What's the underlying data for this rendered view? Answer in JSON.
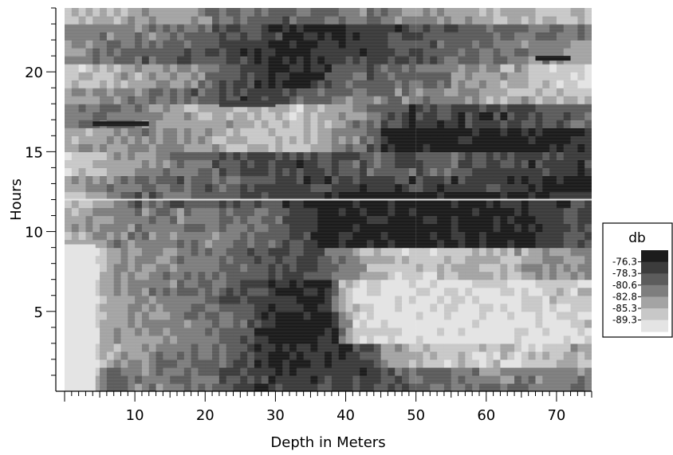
{
  "chart_data": {
    "type": "heatmap",
    "title": "",
    "xlabel": "Depth in Meters",
    "ylabel": "Hours",
    "xlim": [
      0,
      75
    ],
    "ylim": [
      0,
      24
    ],
    "x_ticks": [
      10,
      20,
      30,
      40,
      50,
      60,
      70
    ],
    "y_ticks": [
      5,
      10,
      15,
      20
    ],
    "colorbar": {
      "title": "db",
      "levels": [
        "-76.3",
        "-78.3",
        "-80.6",
        "-82.8",
        "-85.3",
        "-89.3"
      ],
      "colors": [
        "#1c1c1c",
        "#3c3c3c",
        "#5c5c5c",
        "#7e7e7e",
        "#a4a4a4",
        "#c8c8c8",
        "#e4e4e4"
      ]
    },
    "bands": [
      {
        "y0": 0.0,
        "y1": 1.5,
        "stops": [
          [
            0,
            5
          ],
          [
            4,
            5
          ],
          [
            6,
            2
          ],
          [
            12,
            3
          ],
          [
            22,
            2
          ],
          [
            28,
            1
          ],
          [
            42,
            1
          ],
          [
            48,
            2
          ],
          [
            60,
            3
          ],
          [
            75,
            3
          ]
        ]
      },
      {
        "y0": 1.5,
        "y1": 3.0,
        "stops": [
          [
            0,
            6
          ],
          [
            4,
            6
          ],
          [
            6,
            4
          ],
          [
            14,
            3
          ],
          [
            24,
            2
          ],
          [
            30,
            0
          ],
          [
            42,
            1
          ],
          [
            46,
            4
          ],
          [
            55,
            5
          ],
          [
            65,
            5
          ],
          [
            75,
            4
          ]
        ]
      },
      {
        "y0": 3.0,
        "y1": 5.0,
        "stops": [
          [
            0,
            6
          ],
          [
            4,
            6
          ],
          [
            6,
            4
          ],
          [
            16,
            3
          ],
          [
            26,
            2
          ],
          [
            29,
            0
          ],
          [
            38,
            0
          ],
          [
            41,
            5
          ],
          [
            48,
            6
          ],
          [
            70,
            6
          ],
          [
            75,
            5
          ]
        ]
      },
      {
        "y0": 5.0,
        "y1": 7.0,
        "stops": [
          [
            0,
            6
          ],
          [
            4,
            6
          ],
          [
            6,
            4
          ],
          [
            14,
            3
          ],
          [
            24,
            2
          ],
          [
            29,
            1
          ],
          [
            34,
            0
          ],
          [
            37,
            0
          ],
          [
            40,
            5
          ],
          [
            50,
            6
          ],
          [
            70,
            5
          ],
          [
            75,
            5
          ]
        ]
      },
      {
        "y0": 7.0,
        "y1": 9.0,
        "stops": [
          [
            0,
            6
          ],
          [
            4,
            6
          ],
          [
            6,
            4
          ],
          [
            16,
            3
          ],
          [
            26,
            2
          ],
          [
            34,
            1
          ],
          [
            40,
            3
          ],
          [
            45,
            5
          ],
          [
            55,
            5
          ],
          [
            65,
            4
          ],
          [
            75,
            3
          ]
        ]
      },
      {
        "y0": 9.0,
        "y1": 11.5,
        "stops": [
          [
            0,
            4
          ],
          [
            4,
            4
          ],
          [
            8,
            3
          ],
          [
            20,
            3
          ],
          [
            30,
            2
          ],
          [
            34,
            1
          ],
          [
            37,
            0
          ],
          [
            65,
            0
          ],
          [
            68,
            1
          ],
          [
            75,
            2
          ]
        ]
      },
      {
        "y0": 11.5,
        "y1": 12.3,
        "stops": [
          [
            0,
            5
          ],
          [
            6,
            4
          ],
          [
            10,
            2
          ],
          [
            20,
            2
          ],
          [
            34,
            1
          ],
          [
            36,
            0
          ],
          [
            60,
            0
          ],
          [
            70,
            1
          ],
          [
            75,
            1
          ]
        ]
      },
      {
        "y0": 12.3,
        "y1": 13.5,
        "stops": [
          [
            0,
            4
          ],
          [
            8,
            3
          ],
          [
            14,
            2
          ],
          [
            25,
            2
          ],
          [
            35,
            1
          ],
          [
            45,
            1
          ],
          [
            60,
            1
          ],
          [
            75,
            0
          ]
        ]
      },
      {
        "y0": 13.5,
        "y1": 15.0,
        "stops": [
          [
            0,
            5
          ],
          [
            8,
            4
          ],
          [
            14,
            3
          ],
          [
            22,
            2
          ],
          [
            30,
            1
          ],
          [
            45,
            2
          ],
          [
            55,
            2
          ],
          [
            65,
            1
          ],
          [
            75,
            1
          ]
        ]
      },
      {
        "y0": 15.0,
        "y1": 16.5,
        "stops": [
          [
            0,
            4
          ],
          [
            6,
            4
          ],
          [
            12,
            3
          ],
          [
            22,
            4
          ],
          [
            32,
            5
          ],
          [
            38,
            4
          ],
          [
            44,
            2
          ],
          [
            46,
            0
          ],
          [
            70,
            0
          ],
          [
            75,
            1
          ]
        ]
      },
      {
        "y0": 16.5,
        "y1": 17.8,
        "stops": [
          [
            0,
            3
          ],
          [
            8,
            2
          ],
          [
            14,
            4
          ],
          [
            24,
            4
          ],
          [
            34,
            5
          ],
          [
            42,
            3
          ],
          [
            48,
            1
          ],
          [
            60,
            1
          ],
          [
            75,
            2
          ]
        ]
      },
      {
        "y0": 17.8,
        "y1": 19.2,
        "stops": [
          [
            0,
            4
          ],
          [
            10,
            3
          ],
          [
            20,
            2
          ],
          [
            26,
            1
          ],
          [
            34,
            2
          ],
          [
            42,
            3
          ],
          [
            52,
            3
          ],
          [
            62,
            4
          ],
          [
            75,
            5
          ]
        ]
      },
      {
        "y0": 19.2,
        "y1": 20.5,
        "stops": [
          [
            0,
            5
          ],
          [
            10,
            4
          ],
          [
            20,
            3
          ],
          [
            26,
            1
          ],
          [
            30,
            0
          ],
          [
            36,
            1
          ],
          [
            42,
            2
          ],
          [
            55,
            3
          ],
          [
            65,
            4
          ],
          [
            75,
            6
          ]
        ]
      },
      {
        "y0": 20.5,
        "y1": 21.8,
        "stops": [
          [
            0,
            4
          ],
          [
            8,
            2
          ],
          [
            16,
            2
          ],
          [
            26,
            1
          ],
          [
            30,
            0
          ],
          [
            40,
            1
          ],
          [
            55,
            2
          ],
          [
            66,
            3
          ],
          [
            75,
            4
          ]
        ]
      },
      {
        "y0": 21.8,
        "y1": 23.0,
        "stops": [
          [
            0,
            3
          ],
          [
            10,
            3
          ],
          [
            20,
            2
          ],
          [
            30,
            1
          ],
          [
            38,
            0
          ],
          [
            46,
            1
          ],
          [
            60,
            2
          ],
          [
            75,
            3
          ]
        ]
      },
      {
        "y0": 23.0,
        "y1": 24.0,
        "stops": [
          [
            0,
            5
          ],
          [
            10,
            4
          ],
          [
            20,
            3
          ],
          [
            30,
            2
          ],
          [
            45,
            3
          ],
          [
            60,
            4
          ],
          [
            75,
            5
          ]
        ]
      }
    ],
    "overlays": [
      {
        "x0": 0,
        "x1": 4.4,
        "y0": 0,
        "y1": 9.2,
        "level": 6
      },
      {
        "x0": 4,
        "x1": 12,
        "y0": 16.6,
        "y1": 16.9,
        "level": 0
      },
      {
        "x0": 67,
        "x1": 72,
        "y0": 20.7,
        "y1": 21.0,
        "level": 0
      },
      {
        "x0": 22,
        "x1": 30,
        "y0": 17.8,
        "y1": 18.2,
        "level": 1
      },
      {
        "x0": 0,
        "x1": 75,
        "y0": 11.95,
        "y1": 12.05,
        "level": 6
      }
    ]
  }
}
